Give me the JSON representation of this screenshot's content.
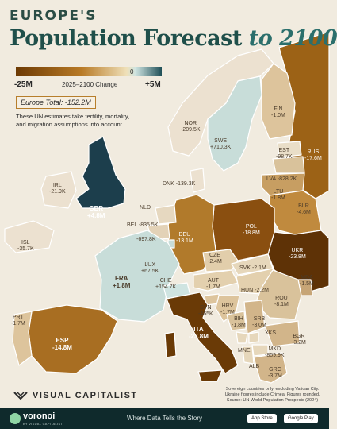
{
  "header": {
    "kicker": "EUROPE'S",
    "title": "Population Forecast",
    "title_tail": "to 2100"
  },
  "legend": {
    "min": "-25M",
    "zero": "0",
    "label": "2025–2100 Change",
    "max": "+5M",
    "colors": [
      "#6d3a04",
      "#b87a26",
      "#efe0b9",
      "#cfe4e1",
      "#1f4f57"
    ]
  },
  "total": "Europe Total: -152.2M",
  "description": "These UN estimates take fertility, mortality, and migration assumptions into account",
  "countries": [
    {
      "code": "GBR",
      "value": "+4.8M"
    },
    {
      "code": "IRL",
      "value": "-21.9K"
    },
    {
      "code": "ISL",
      "value": "-35.7K"
    },
    {
      "code": "NOR",
      "value": "-209.5K"
    },
    {
      "code": "SWE",
      "value": "+710.3K"
    },
    {
      "code": "FIN",
      "value": "-1.0M"
    },
    {
      "code": "EST",
      "value": "-98.7K"
    },
    {
      "code": "LVA",
      "value": "-828.2K"
    },
    {
      "code": "LTU",
      "value": "-1.8M"
    },
    {
      "code": "RUS",
      "value": "-17.6M"
    },
    {
      "code": "BLR",
      "value": "-4.6M"
    },
    {
      "code": "DNK",
      "value": "-139.3K"
    },
    {
      "code": "NLD",
      "value": ""
    },
    {
      "code": "BEL",
      "value": "-835.5K"
    },
    {
      "code": "",
      "value": "-697.8K"
    },
    {
      "code": "LUX",
      "value": "+67.5K"
    },
    {
      "code": "DEU",
      "value": "-13.1M"
    },
    {
      "code": "POL",
      "value": "-18.8M"
    },
    {
      "code": "UKR",
      "value": "-23.8M"
    },
    {
      "code": "CZE",
      "value": "-2.4M"
    },
    {
      "code": "SVK",
      "value": "-2.1M"
    },
    {
      "code": "FRA",
      "value": "+1.8M"
    },
    {
      "code": "CHE",
      "value": "+154.7K"
    },
    {
      "code": "AUT",
      "value": "-1.7M"
    },
    {
      "code": "HUN",
      "value": "-2.2M"
    },
    {
      "code": "ROU",
      "value": "-8.1M"
    },
    {
      "code": "MDA",
      "value": "-1.5M"
    },
    {
      "code": "SVN",
      "value": "-465K"
    },
    {
      "code": "HRV",
      "value": "-1.7M"
    },
    {
      "code": "BIH",
      "value": "-1.8M"
    },
    {
      "code": "SRB",
      "value": "-3.0M"
    },
    {
      "code": "BGR",
      "value": "-3.2M"
    },
    {
      "code": "MNE",
      "value": ""
    },
    {
      "code": "XKS",
      "value": ""
    },
    {
      "code": "MKD",
      "value": "-859.9K"
    },
    {
      "code": "ALB",
      "value": ""
    },
    {
      "code": "GRC",
      "value": "-3.7M"
    },
    {
      "code": "ITA",
      "value": "-23.8M"
    },
    {
      "code": "ESP",
      "value": "-14.8M"
    },
    {
      "code": "PRT",
      "value": "-1.7M"
    }
  ],
  "note": "Sovereign countries only, excluding Vatican City. Ukraine figures include Crimea. Figures rounded. Source: UN World Population Prospects (2024)",
  "brand": "VISUAL CAPITALIST",
  "footer": {
    "name": "voronoi",
    "sub": "BY VISUAL CAPITALIST",
    "tagline": "Where Data Tells the Story",
    "app_store": "App Store",
    "google_play": "Google Play"
  }
}
